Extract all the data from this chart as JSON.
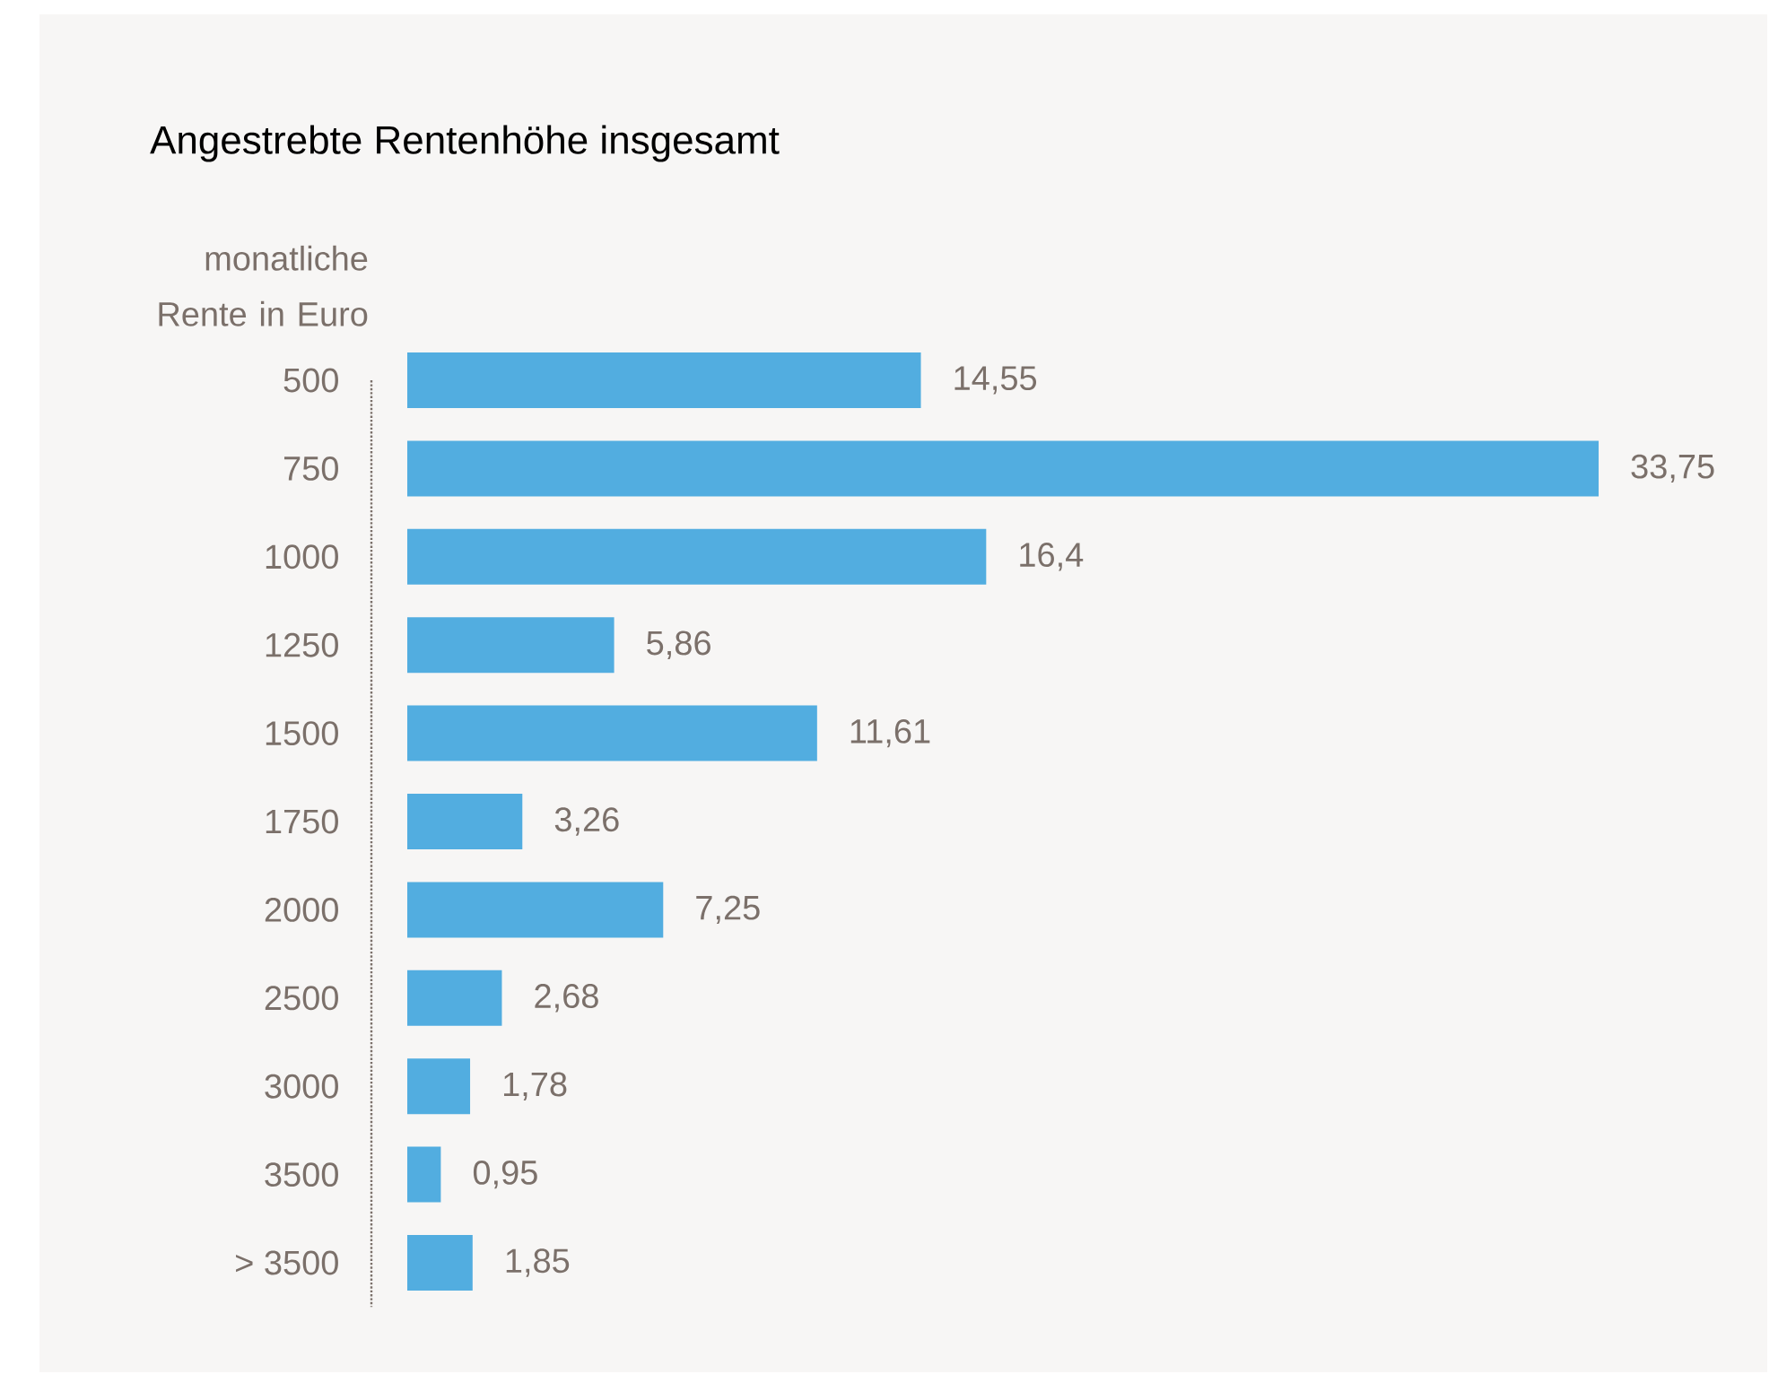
{
  "chart_data": {
    "type": "bar",
    "orientation": "horizontal",
    "title": "Angestrebte Rentenhöhe insgesamt",
    "ylabel": "monatliche Rente in Euro",
    "categories": [
      "500",
      "750",
      "1000",
      "1250",
      "1500",
      "1750",
      "2000",
      "2500",
      "3000",
      "3500",
      "> 3500"
    ],
    "values": [
      14.55,
      33.75,
      16.4,
      5.86,
      11.61,
      3.26,
      7.25,
      2.68,
      1.78,
      0.95,
      1.85
    ],
    "value_labels": [
      "14,55",
      "33,75",
      "16,4",
      "5,86",
      "11,61",
      "3,26",
      "7,25",
      "2,68",
      "1,78",
      "0,95",
      "1,85"
    ],
    "color": "#52ade0"
  }
}
